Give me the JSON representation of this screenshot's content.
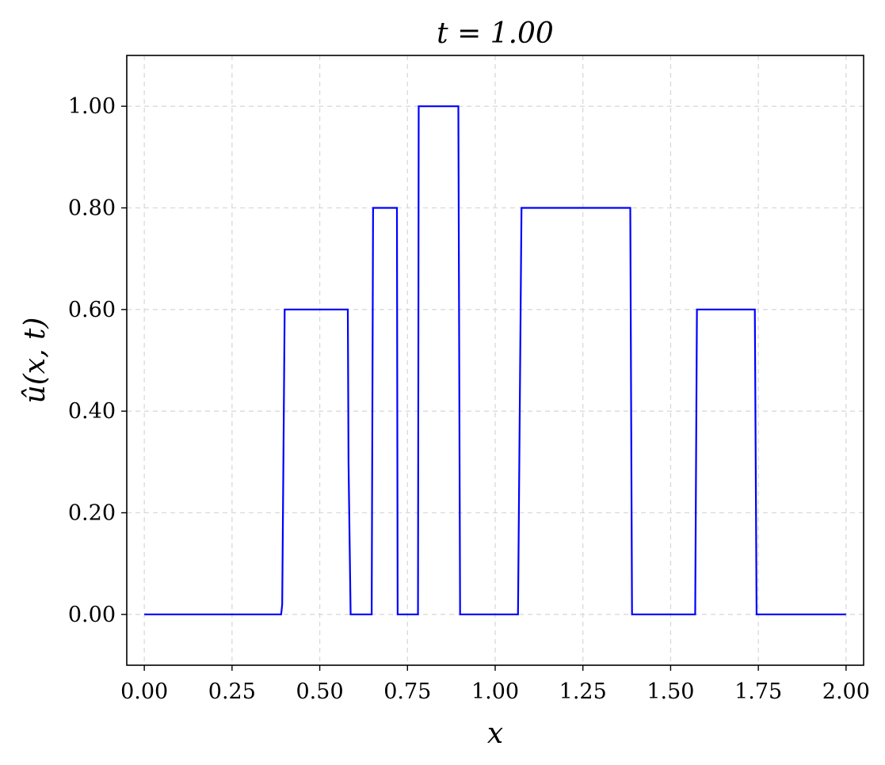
{
  "colors": {
    "series": "#0000ff",
    "axes": "#000000",
    "grid": "#d9d9d9"
  },
  "chart_data": {
    "type": "line",
    "title": "t = 1.00",
    "xlabel": "x",
    "ylabel": "û(x, t)",
    "xlim": [
      -0.05,
      2.05
    ],
    "ylim": [
      -0.1,
      1.1
    ],
    "grid": true,
    "grid_style": "dashed",
    "xticks": [
      0.0,
      0.25,
      0.5,
      0.75,
      1.0,
      1.25,
      1.5,
      1.75,
      2.0
    ],
    "xtick_labels": [
      "0.00",
      "0.25",
      "0.50",
      "0.75",
      "1.00",
      "1.25",
      "1.50",
      "1.75",
      "2.00"
    ],
    "yticks": [
      0.0,
      0.2,
      0.4,
      0.6,
      0.8,
      1.0
    ],
    "ytick_labels": [
      "0.00",
      "0.20",
      "0.40",
      "0.60",
      "0.80",
      "1.00"
    ],
    "series": [
      {
        "color": "#0000ff",
        "x": [
          0.0,
          0.39,
          0.393,
          0.4,
          0.58,
          0.582,
          0.588,
          0.648,
          0.652,
          0.72,
          0.722,
          0.78,
          0.782,
          0.895,
          0.9,
          1.065,
          1.07,
          1.075,
          1.385,
          1.39,
          1.57,
          1.575,
          1.74,
          1.745,
          2.0
        ],
        "y": [
          0.0,
          0.0,
          0.02,
          0.6,
          0.6,
          0.3,
          0.0,
          0.0,
          0.8,
          0.8,
          0.0,
          0.0,
          1.0,
          1.0,
          0.0,
          0.0,
          0.4,
          0.8,
          0.8,
          0.0,
          0.0,
          0.6,
          0.6,
          0.0,
          0.0
        ]
      }
    ]
  }
}
